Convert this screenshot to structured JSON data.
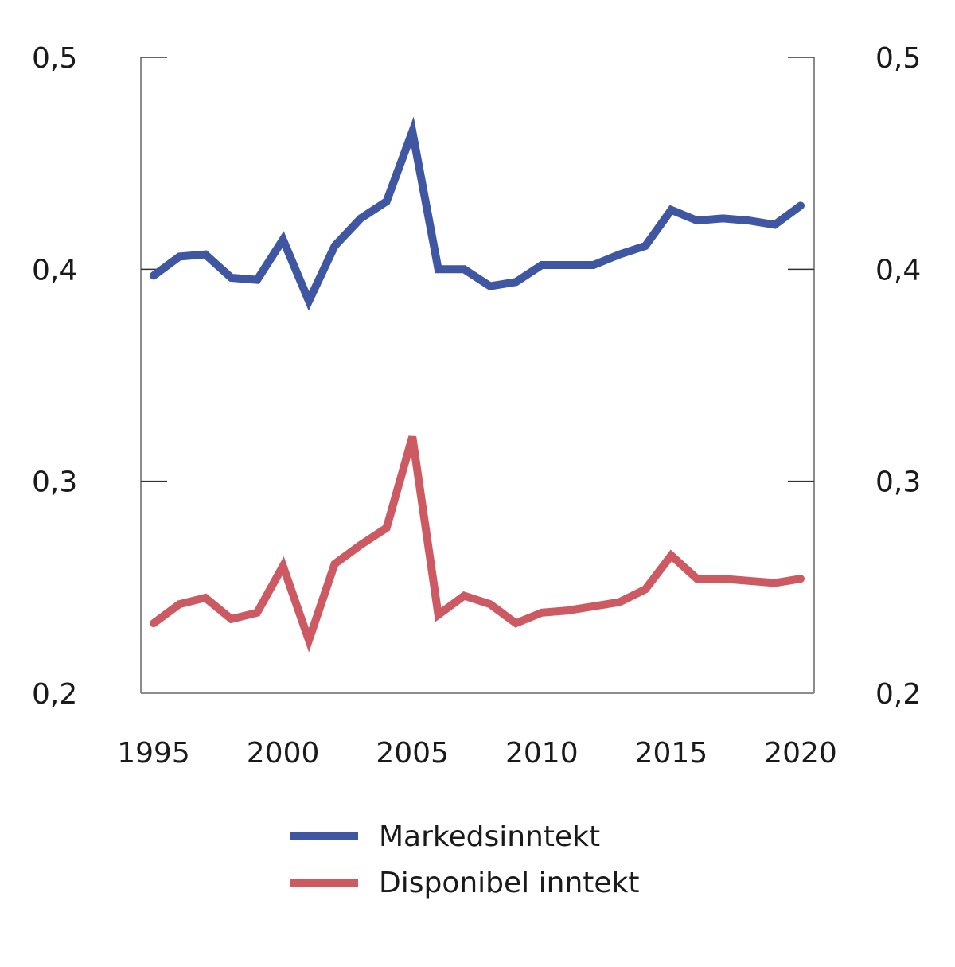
{
  "chart_data": {
    "type": "line",
    "title": "",
    "xlabel": "",
    "ylabel": "",
    "x": [
      1995,
      1996,
      1997,
      1998,
      1999,
      2000,
      2001,
      2002,
      2003,
      2004,
      2005,
      2006,
      2007,
      2008,
      2009,
      2010,
      2011,
      2012,
      2013,
      2014,
      2015,
      2016,
      2017,
      2018,
      2019,
      2020
    ],
    "xticks": [
      1995,
      2000,
      2005,
      2010,
      2015,
      2020
    ],
    "xtick_labels": [
      "1995",
      "2000",
      "2005",
      "2010",
      "2015",
      "2020"
    ],
    "xlim": [
      1995,
      2020
    ],
    "ylim": [
      0.2,
      0.5
    ],
    "yticks": [
      0.2,
      0.3,
      0.4,
      0.5
    ],
    "ytick_labels": [
      "0,2",
      "0,3",
      "0,4",
      "0,5"
    ],
    "secondary_yticks": [
      0.2,
      0.3,
      0.4,
      0.5
    ],
    "secondary_ytick_labels": [
      "0,2",
      "0,3",
      "0,4",
      "0,5"
    ],
    "grid": false,
    "legend_position": "bottom",
    "series": [
      {
        "name": "Markedsinntekt",
        "color": "#3f56a2",
        "values": [
          0.397,
          0.406,
          0.407,
          0.396,
          0.395,
          0.414,
          0.385,
          0.411,
          0.424,
          0.432,
          0.465,
          0.4,
          0.4,
          0.392,
          0.394,
          0.402,
          0.402,
          0.402,
          0.407,
          0.411,
          0.428,
          0.423,
          0.424,
          0.423,
          0.421,
          0.43
        ]
      },
      {
        "name": "Disponibel inntekt",
        "color": "#cd5a63",
        "values": [
          0.233,
          0.242,
          0.245,
          0.235,
          0.238,
          0.26,
          0.225,
          0.261,
          0.27,
          0.278,
          0.321,
          0.237,
          0.246,
          0.242,
          0.233,
          0.238,
          0.239,
          0.241,
          0.243,
          0.249,
          0.265,
          0.254,
          0.254,
          0.253,
          0.252,
          0.254
        ]
      }
    ]
  }
}
